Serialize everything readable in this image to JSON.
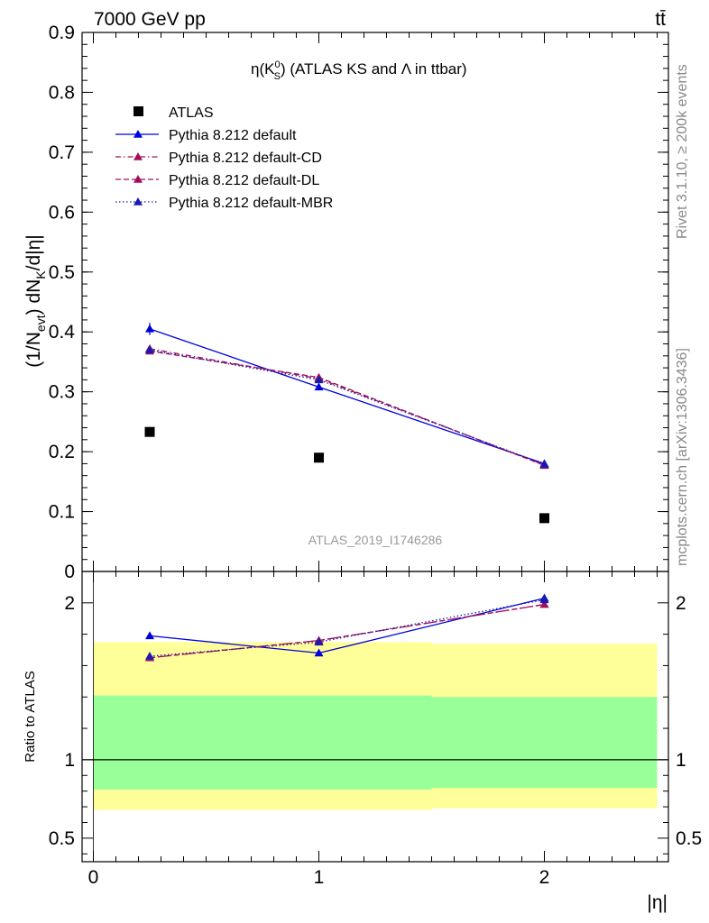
{
  "header": {
    "energy_label": "7000 GeV pp",
    "process_label": "tt̄"
  },
  "side_labels": {
    "rivet": "Rivet 3.1.10, ≥ 200k events",
    "mcplots": "mcplots.cern.ch [arXiv:1306.3436]"
  },
  "chart_data": [
    {
      "type": "scatter",
      "title": "η(K⁰S) (ATLAS KS and Λ in ttbar)",
      "title_main": "η(K",
      "title_sup": "0",
      "title_sub": "S",
      "title_rest": ") (ATLAS KS and Λ in ttbar)",
      "analysis_label": "ATLAS_2019_I1746286",
      "ylabel": "(1/Nevt) dNK/d|η|",
      "ylabel_parts": {
        "a": "(1/N",
        "sub1": "evt",
        "b": ") dN",
        "sub2": "K",
        "c": "/d|η|"
      },
      "xlim": [
        -0.05,
        2.55
      ],
      "ylim": [
        0,
        0.9
      ],
      "yticks": [
        0,
        0.1,
        0.2,
        0.3,
        0.4,
        0.5,
        0.6,
        0.7,
        0.8,
        0.9
      ],
      "ytick_labels": [
        "0",
        "0.1",
        "0.2",
        "0.3",
        "0.4",
        "0.5",
        "0.6",
        "0.7",
        "0.8",
        "0.9"
      ],
      "legend_position": "top-left",
      "x": [
        0.25,
        1.0,
        2.0
      ],
      "series": [
        {
          "name": "ATLAS",
          "style": "data",
          "color": "#000000",
          "values": [
            0.233,
            0.19,
            0.089
          ]
        },
        {
          "name": "Pythia 8.212 default",
          "style": "solid",
          "color": "#0000dd",
          "values": [
            0.405,
            0.308,
            0.18
          ],
          "yerr": [
            0.01,
            0.004,
            0.004
          ]
        },
        {
          "name": "Pythia 8.212 default-CD",
          "style": "dashdot",
          "color": "#a0105a",
          "values": [
            0.372,
            0.322,
            0.178
          ]
        },
        {
          "name": "Pythia 8.212 default-DL",
          "style": "dashed",
          "color": "#a0105a",
          "values": [
            0.368,
            0.324,
            0.177
          ]
        },
        {
          "name": "Pythia 8.212 default-MBR",
          "style": "dotted",
          "color": "#1a1ab0",
          "values": [
            0.37,
            0.32,
            0.179
          ]
        }
      ]
    },
    {
      "type": "line",
      "ylabel": "Ratio to ATLAS",
      "xlabel": "|η|",
      "xlim": [
        -0.05,
        2.55
      ],
      "ylim": [
        0.35,
        2.2
      ],
      "yticks": [
        0.5,
        1,
        2
      ],
      "ytick_labels": [
        "0.5",
        "1",
        "2"
      ],
      "xticks": [
        0,
        1,
        2
      ],
      "xtick_labels": [
        "0",
        "1",
        "2"
      ],
      "bands": [
        {
          "x0": 0.0,
          "x1": 0.5,
          "yellow": [
            0.68,
            1.75
          ],
          "green": [
            0.81,
            1.41
          ]
        },
        {
          "x0": 0.5,
          "x1": 1.5,
          "yellow": [
            0.68,
            1.75
          ],
          "green": [
            0.81,
            1.41
          ]
        },
        {
          "x0": 1.5,
          "x1": 2.5,
          "yellow": [
            0.69,
            1.74
          ],
          "green": [
            0.82,
            1.4
          ]
        }
      ],
      "x": [
        0.25,
        1.0,
        2.0
      ],
      "series": [
        {
          "name": "Pythia 8.212 default",
          "style": "solid",
          "color": "#0000dd",
          "values": [
            1.79,
            1.68,
            2.03
          ]
        },
        {
          "name": "Pythia 8.212 default-CD",
          "style": "dashdot",
          "color": "#a0105a",
          "values": [
            1.65,
            1.76,
            1.99
          ]
        },
        {
          "name": "Pythia 8.212 default-DL",
          "style": "dashed",
          "color": "#a0105a",
          "values": [
            1.65,
            1.76,
            1.99
          ]
        },
        {
          "name": "Pythia 8.212 default-MBR",
          "style": "dotted",
          "color": "#1a1ab0",
          "values": [
            1.66,
            1.75,
            2.02
          ]
        }
      ]
    }
  ]
}
